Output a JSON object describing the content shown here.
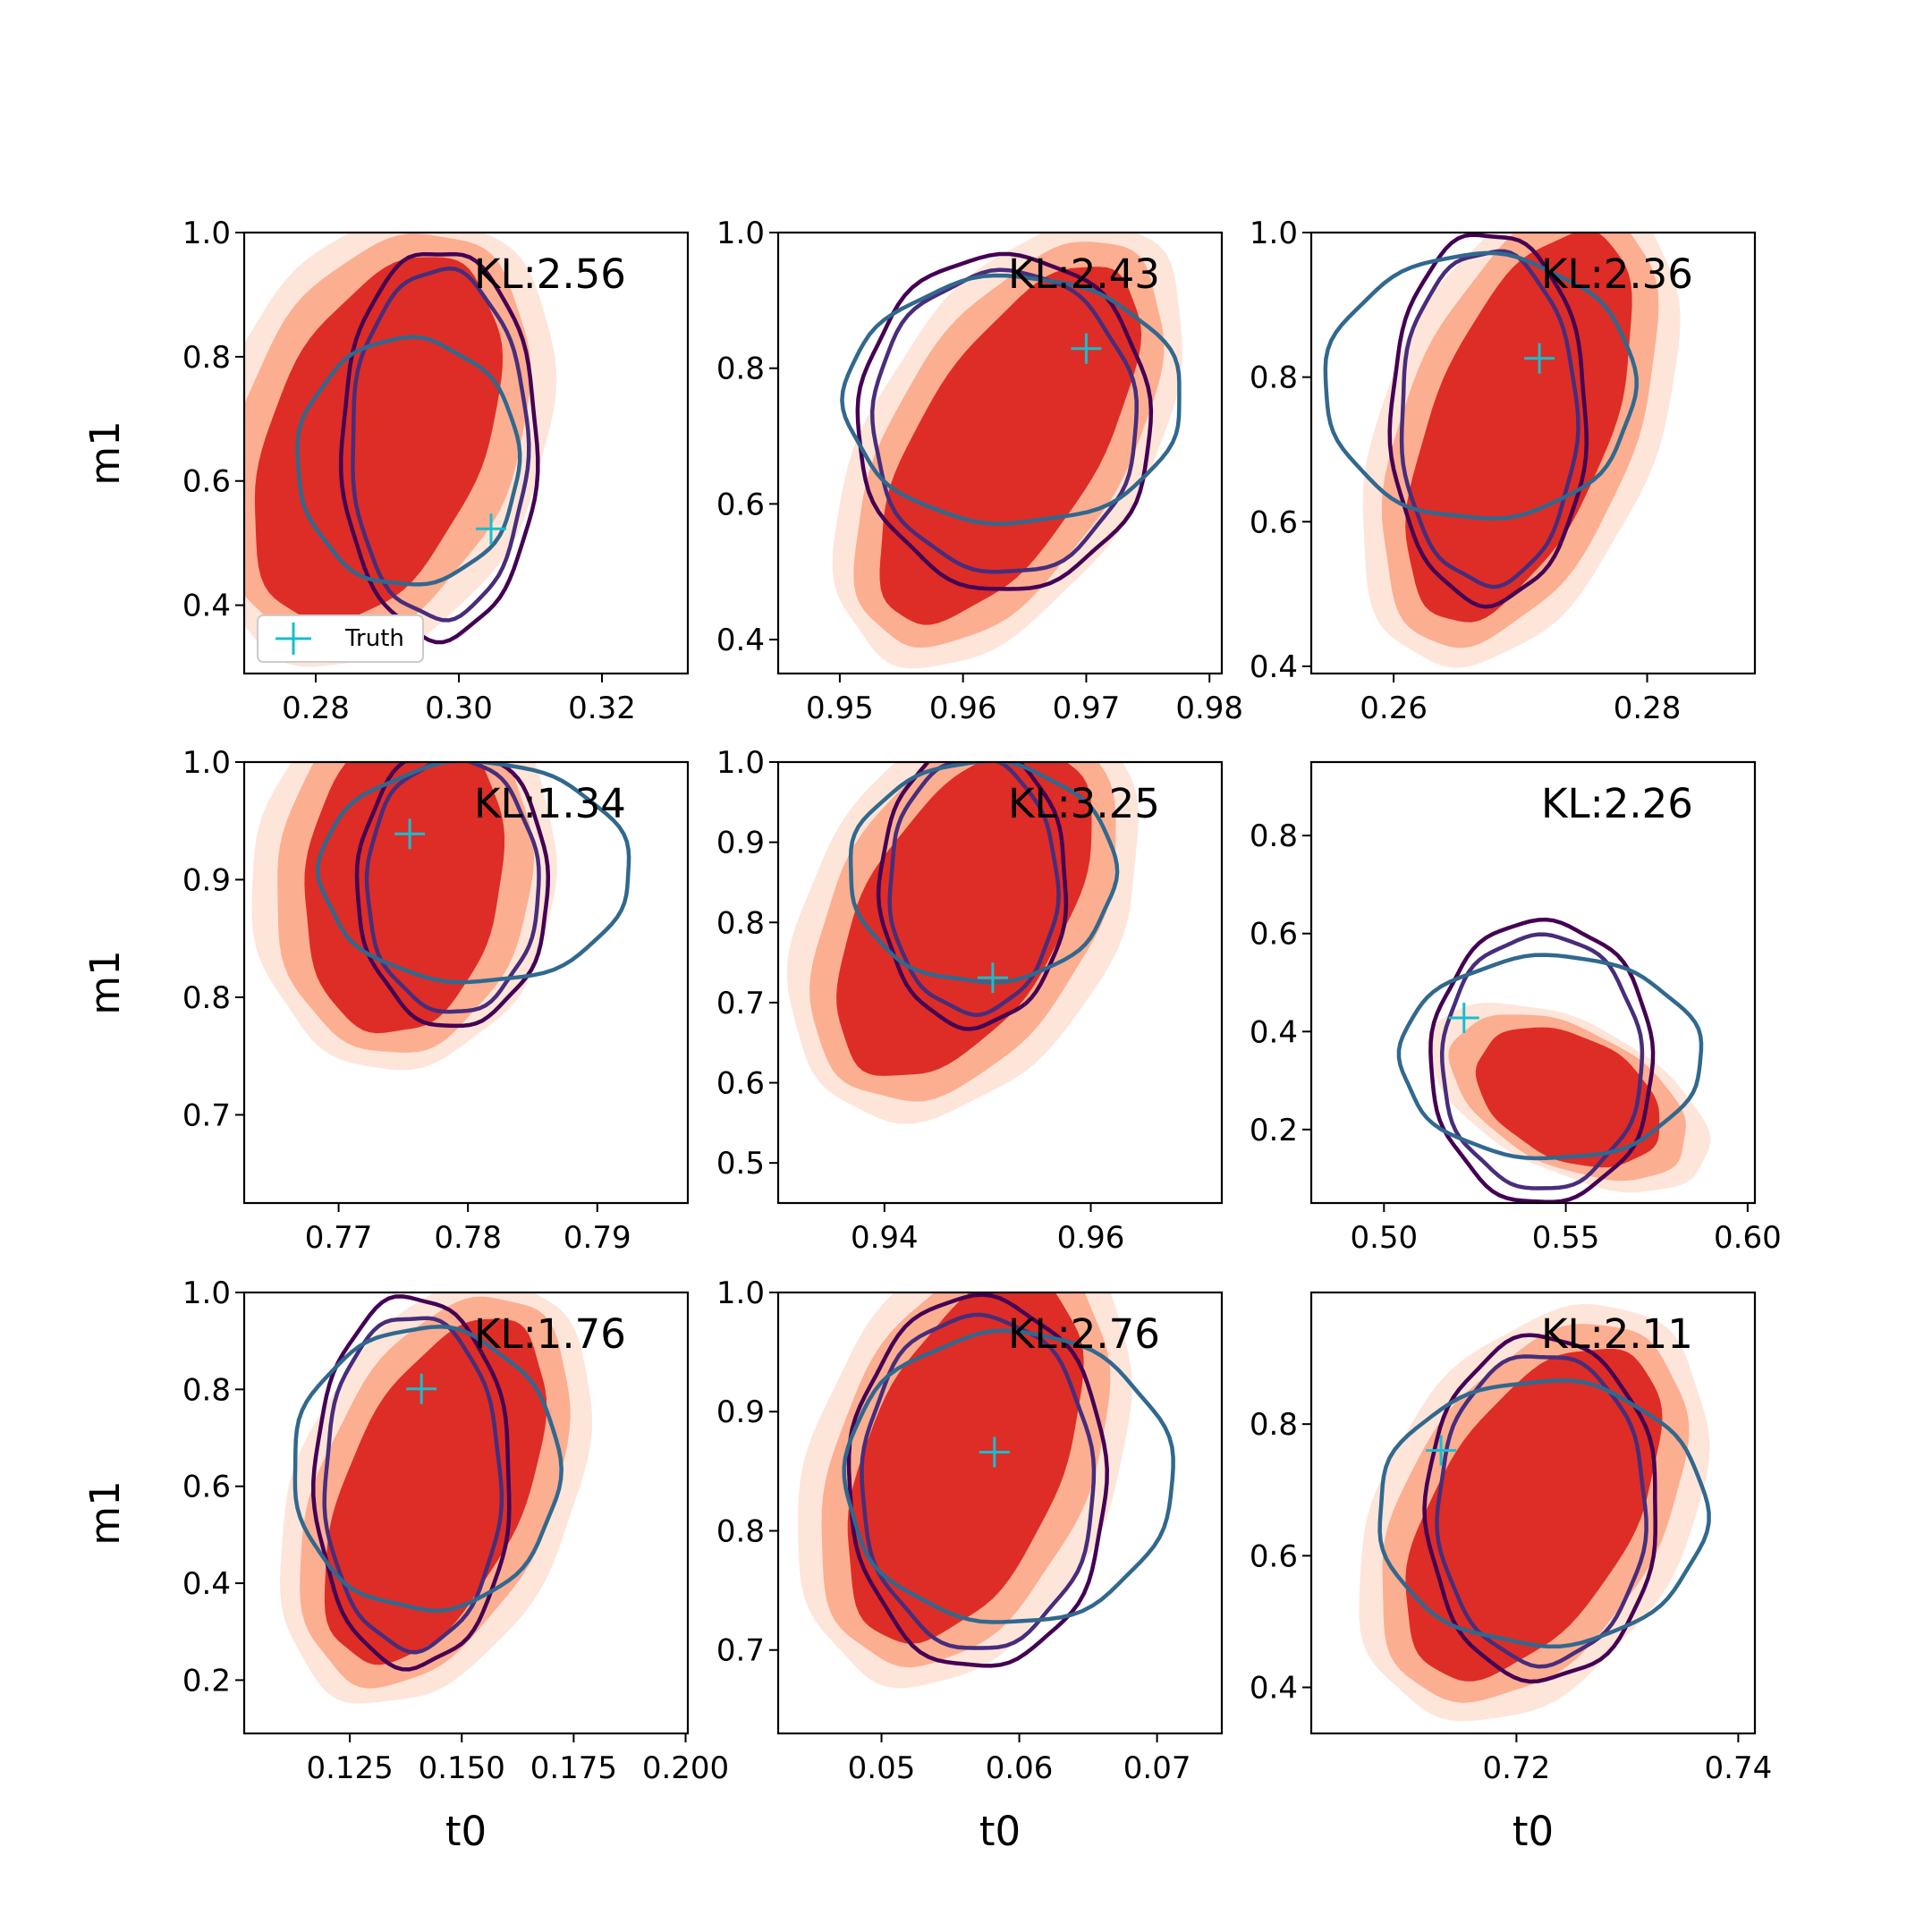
{
  "figure": {
    "x_label": "t0",
    "y_label": "m1",
    "legend": {
      "label": "Truth",
      "placement": "lower-left",
      "panel": 0
    }
  },
  "colors": {
    "fill_outer": "#fee5d9",
    "fill_mid": "#fcae91",
    "fill_inner": "#de2d26",
    "contour_outer": "#440154",
    "contour_mid": "#472d7b",
    "contour_inner": "#31688e",
    "truth": "#17becf"
  },
  "chart_data": [
    {
      "type": "contour",
      "kl_label": "KL:2.56",
      "xlim": [
        0.27,
        0.332
      ],
      "ylim": [
        0.29,
        1.0
      ],
      "xticks": [
        "0.28",
        "0.30",
        "0.32"
      ],
      "yticks": [
        "0.4",
        "0.6",
        "0.8",
        "1.0"
      ],
      "truth": [
        0.3045,
        0.523
      ],
      "show_xlabel": false,
      "show_ylabel": true
    },
    {
      "type": "contour",
      "kl_label": "KL:2.43",
      "xlim": [
        0.945,
        0.981
      ],
      "ylim": [
        0.35,
        1.0
      ],
      "xticks": [
        "0.95",
        "0.96",
        "0.97",
        "0.98"
      ],
      "yticks": [
        "0.4",
        "0.6",
        "0.8",
        "1.0"
      ],
      "truth": [
        0.97,
        0.829
      ],
      "show_xlabel": false,
      "show_ylabel": false
    },
    {
      "type": "contour",
      "kl_label": "KL:2.36",
      "xlim": [
        0.2535,
        0.2885
      ],
      "ylim": [
        0.39,
        1.0
      ],
      "xticks": [
        "0.26",
        "0.28"
      ],
      "yticks": [
        "0.4",
        "0.6",
        "0.8",
        "1.0"
      ],
      "truth": [
        0.2715,
        0.826
      ],
      "show_xlabel": false,
      "show_ylabel": false
    },
    {
      "type": "contour",
      "kl_label": "KL:1.34",
      "xlim": [
        0.7627,
        0.797
      ],
      "ylim": [
        0.625,
        1.0
      ],
      "xticks": [
        "0.77",
        "0.78",
        "0.79"
      ],
      "yticks": [
        "0.7",
        "0.8",
        "0.9",
        "1.0"
      ],
      "truth": [
        0.7755,
        0.939
      ],
      "show_xlabel": false,
      "show_ylabel": true
    },
    {
      "type": "contour",
      "kl_label": "KL:3.25",
      "xlim": [
        0.9297,
        0.9727
      ],
      "ylim": [
        0.45,
        1.0
      ],
      "xticks": [
        "0.94",
        "0.96"
      ],
      "yticks": [
        "0.5",
        "0.6",
        "0.7",
        "0.8",
        "0.9",
        "1.0"
      ],
      "truth": [
        0.9505,
        0.731
      ],
      "show_xlabel": false,
      "show_ylabel": false
    },
    {
      "type": "contour",
      "kl_label": "KL:2.26",
      "xlim": [
        0.48,
        0.602
      ],
      "ylim": [
        0.05,
        0.95
      ],
      "xticks": [
        "0.50",
        "0.55",
        "0.60"
      ],
      "yticks": [
        "0.2",
        "0.4",
        "0.6",
        "0.8"
      ],
      "truth": [
        0.522,
        0.428
      ],
      "show_xlabel": false,
      "show_ylabel": false
    },
    {
      "type": "contour",
      "kl_label": "KL:1.76",
      "xlim": [
        0.1014,
        0.2005
      ],
      "ylim": [
        0.09,
        1.0
      ],
      "xticks": [
        "0.125",
        "0.150",
        "0.175",
        "0.200"
      ],
      "yticks": [
        "0.2",
        "0.4",
        "0.6",
        "0.8",
        "1.0"
      ],
      "truth": [
        0.141,
        0.801
      ],
      "show_xlabel": true,
      "show_ylabel": true
    },
    {
      "type": "contour",
      "kl_label": "KL:2.76",
      "xlim": [
        0.0425,
        0.0747
      ],
      "ylim": [
        0.63,
        1.0
      ],
      "xticks": [
        "0.05",
        "0.06",
        "0.07"
      ],
      "yticks": [
        "0.7",
        "0.8",
        "0.9",
        "1.0"
      ],
      "truth": [
        0.0582,
        0.866
      ],
      "show_xlabel": true,
      "show_ylabel": false
    },
    {
      "type": "contour",
      "kl_label": "KL:2.11",
      "xlim": [
        0.7015,
        0.7415
      ],
      "ylim": [
        0.33,
        1.0
      ],
      "xticks": [
        "0.72",
        "0.74"
      ],
      "yticks": [
        "0.4",
        "0.6",
        "0.8"
      ],
      "truth": [
        0.7132,
        0.76
      ],
      "show_xlabel": true,
      "show_ylabel": false
    }
  ]
}
